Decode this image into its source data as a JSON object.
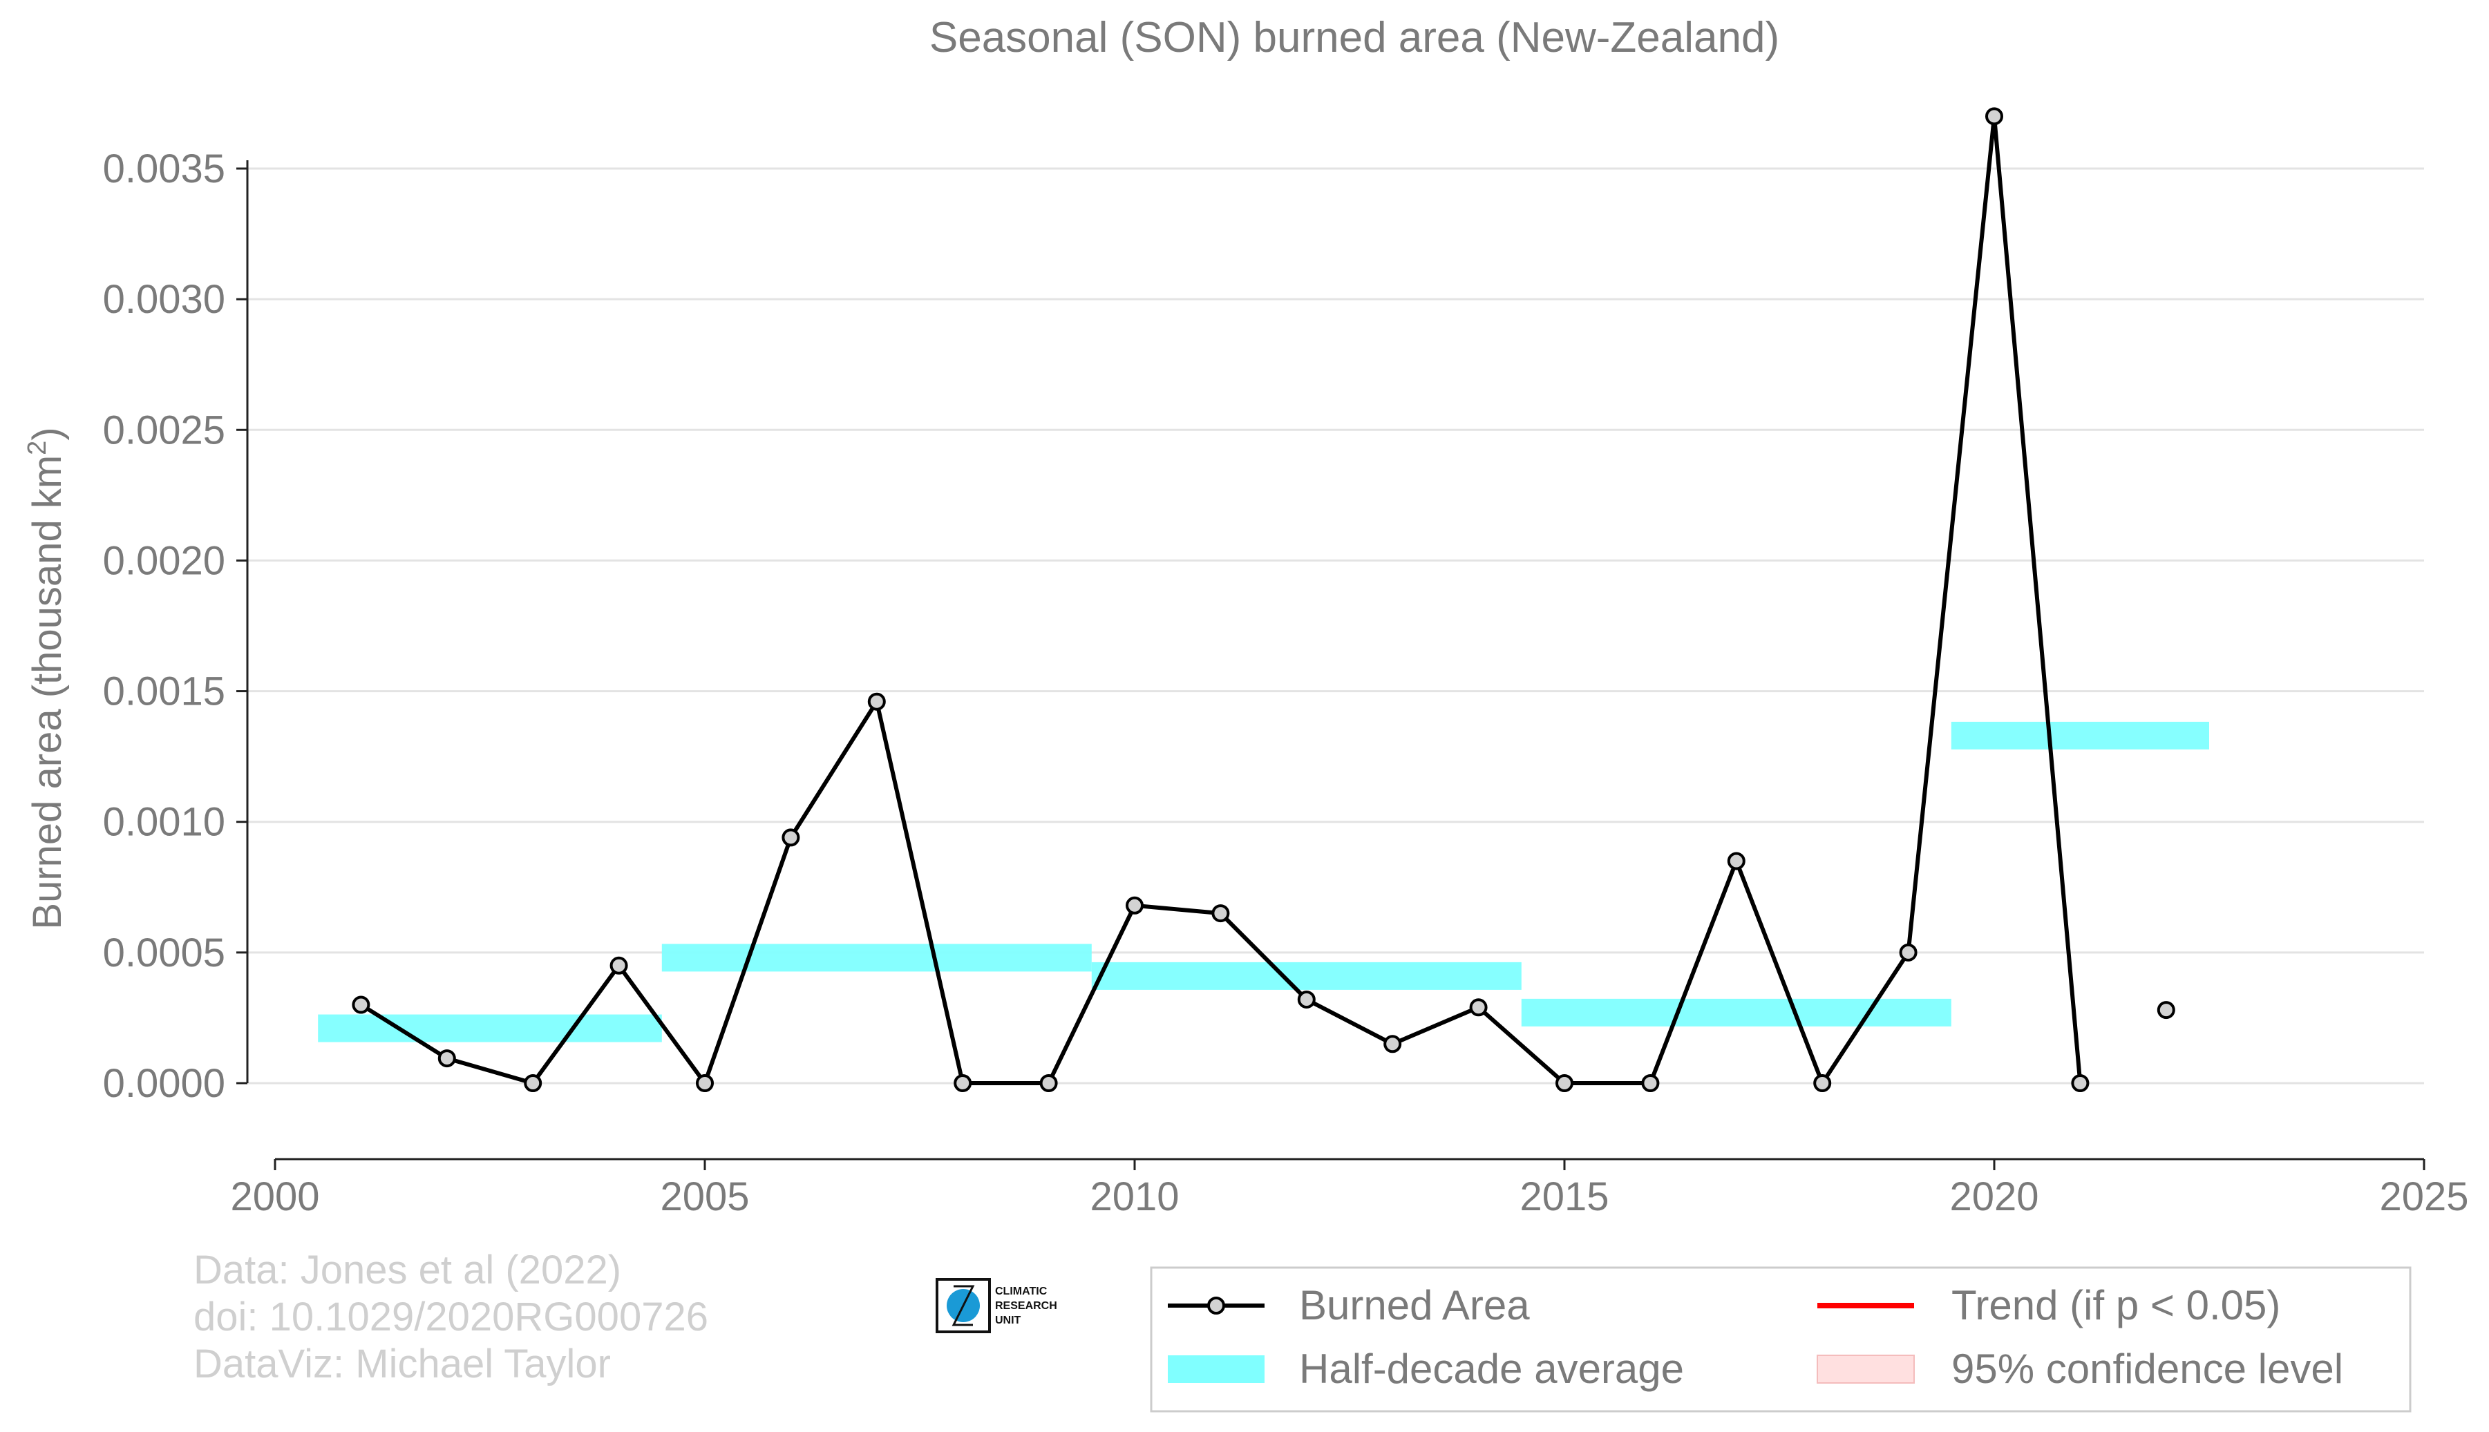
{
  "chart_data": {
    "type": "line",
    "title": "Seasonal (SON) burned area (New-Zealand)",
    "ylabel": "Burned area (thousand km",
    "ylabel_sup": "2",
    "ylabel_close": ")",
    "xlim": [
      2000,
      2025
    ],
    "ylim": [
      -0.0003,
      0.0037
    ],
    "x_ticks": [
      2000,
      2005,
      2010,
      2015,
      2020,
      2025
    ],
    "x_tick_labels": [
      "2000",
      "2005",
      "2010",
      "2015",
      "2020",
      "2025"
    ],
    "y_ticks": [
      0,
      0.0005,
      0.001,
      0.0015,
      0.002,
      0.0025,
      0.003,
      0.0035
    ],
    "y_tick_labels": [
      "0.0000",
      "0.0005",
      "0.0010",
      "0.0015",
      "0.0020",
      "0.0025",
      "0.0030",
      "0.0035"
    ],
    "grid": "horizontal",
    "legend_placement": "bottom-right",
    "series": [
      {
        "name": "Burned Area",
        "color": "#000000",
        "marker_fill": "#d3d3d3",
        "x": [
          2001,
          2002,
          2003,
          2004,
          2005,
          2006,
          2007,
          2008,
          2009,
          2010,
          2011,
          2012,
          2013,
          2014,
          2015,
          2016,
          2017,
          2018,
          2019,
          2020,
          2021,
          2022
        ],
        "y": [
          0.0003,
          9.5e-05,
          0.0,
          0.00045,
          0.0,
          0.00094,
          0.00146,
          0.0,
          0.0,
          0.00068,
          0.00065,
          0.00032,
          0.00015,
          0.00029,
          0.0,
          0.0,
          0.00085,
          0.0,
          0.0005,
          0.0037,
          0.0,
          0.00028
        ],
        "gaps_after": [
          2021
        ]
      }
    ],
    "half_decade_average": {
      "name": "Half-decade average",
      "color": "#80ffff",
      "segments": [
        {
          "x_start": 2000.5,
          "x_end": 2004.5,
          "value": 0.00021
        },
        {
          "x_start": 2004.5,
          "x_end": 2009.5,
          "value": 0.00048
        },
        {
          "x_start": 2009.5,
          "x_end": 2014.5,
          "value": 0.00041
        },
        {
          "x_start": 2014.5,
          "x_end": 2019.5,
          "value": 0.00027
        },
        {
          "x_start": 2019.5,
          "x_end": 2022.5,
          "value": 0.00133
        }
      ]
    },
    "legend": [
      {
        "label": "Burned Area",
        "kind": "line-marker",
        "color": "#000000"
      },
      {
        "label": "Trend (if p < 0.05)",
        "kind": "line",
        "color": "#ff0000"
      },
      {
        "label": "Half-decade average",
        "kind": "band",
        "color": "#80ffff"
      },
      {
        "label": "95% confidence level",
        "kind": "band",
        "color": "#ffe0e0"
      }
    ]
  },
  "credits": {
    "line1": "Data: Jones et al (2022)",
    "line2": "doi: 10.1029/2020RG000726",
    "line3": "DataViz: Michael Taylor"
  },
  "logo": {
    "line1": "CLIMATIC",
    "line2": "RESEARCH",
    "line3": "UNIT",
    "color": "#1a9ad6"
  }
}
